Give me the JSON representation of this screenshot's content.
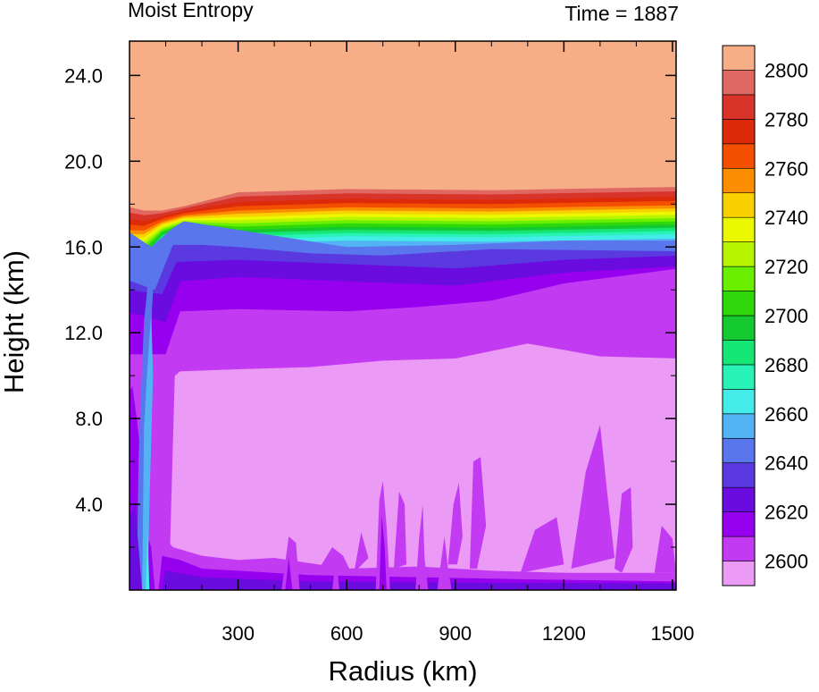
{
  "chart_data": {
    "type": "heatmap",
    "title": "Moist Entropy",
    "annotation": "Time = 1887",
    "xlabel": "Radius (km)",
    "ylabel": "Height (km)",
    "xlim": [
      0,
      1510
    ],
    "ylim": [
      0,
      25.6
    ],
    "x_ticks": [
      300,
      600,
      900,
      1200,
      1500
    ],
    "x_tick_labels": [
      "300",
      "600",
      "900",
      "1200",
      "1500"
    ],
    "y_ticks": [
      4,
      8,
      12,
      16,
      20,
      24
    ],
    "y_tick_labels": [
      "4.0",
      "8.0",
      "12.0",
      "16.0",
      "20.0",
      "24.0"
    ],
    "colorbar": {
      "levels": [
        2600,
        2610,
        2620,
        2630,
        2640,
        2650,
        2660,
        2670,
        2680,
        2690,
        2700,
        2710,
        2720,
        2730,
        2740,
        2750,
        2760,
        2770,
        2780,
        2790,
        2800
      ],
      "tick_labels": [
        "2600",
        "2620",
        "2640",
        "2660",
        "2680",
        "2700",
        "2720",
        "2740",
        "2760",
        "2780",
        "2800"
      ],
      "colors": [
        "#eb9af6",
        "#c23bf2",
        "#9600ee",
        "#6a0be0",
        "#5a3ae0",
        "#5a76ec",
        "#52b4f4",
        "#43ece8",
        "#28f2b6",
        "#16e676",
        "#14c830",
        "#2ed80a",
        "#6aef00",
        "#b6f400",
        "#eaf800",
        "#fad100",
        "#fa8e00",
        "#f44f00",
        "#dc2a0a",
        "#d8342a",
        "#e06862",
        "#f7ad85"
      ]
    },
    "layers": [
      {
        "level_below": 2600,
        "description_top_km": [
          [
            20,
            10.1
          ],
          [
            140,
            10.1
          ],
          [
            300,
            10.3
          ],
          [
            600,
            10.6
          ],
          [
            900,
            10.9
          ],
          [
            1100,
            11.5
          ],
          [
            1300,
            10.9
          ],
          [
            1500,
            10.8
          ]
        ]
      },
      {
        "level_below": 2620,
        "top_km": [
          [
            140,
            13.0
          ],
          [
            600,
            13.0
          ],
          [
            900,
            13.3
          ],
          [
            1200,
            14.0
          ],
          [
            1500,
            15.0
          ]
        ]
      },
      {
        "level_below": 2640,
        "top_km": [
          [
            140,
            15.2
          ],
          [
            600,
            15.3
          ],
          [
            1500,
            15.6
          ]
        ]
      },
      {
        "level_below": 2660,
        "top_km": [
          [
            140,
            16.8
          ],
          [
            1500,
            16.7
          ]
        ]
      },
      {
        "level_below": 2800,
        "top_km": [
          [
            0,
            17.9
          ],
          [
            300,
            18.6
          ],
          [
            1500,
            18.8
          ]
        ]
      }
    ]
  }
}
